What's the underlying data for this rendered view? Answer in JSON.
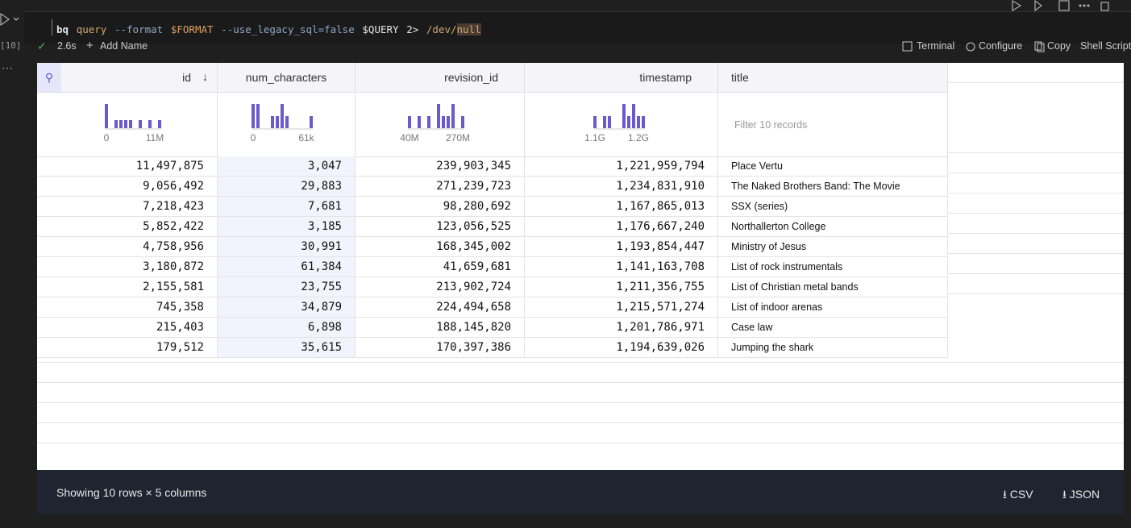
{
  "cell": {
    "exec_count": "[10]",
    "command": [
      "bq",
      "query",
      "--format",
      "$FORMAT",
      "--use_legacy_sql=false",
      "$QUERY",
      "2>",
      "/dev/",
      "null"
    ],
    "duration": "2.6s",
    "add_name": "Add Name"
  },
  "toolbar": [
    "Terminal",
    "Configure",
    "Copy",
    "Shell Script"
  ],
  "table": {
    "columns": [
      "id",
      "num_characters",
      "revision_id",
      "timestamp",
      "title"
    ],
    "histograms": [
      {
        "labels": [
          "0",
          "11M"
        ],
        "counts": [
          3,
          0,
          1,
          1,
          1,
          1,
          0,
          1,
          0,
          1,
          0,
          1
        ]
      },
      {
        "labels": [
          "0",
          "61k"
        ],
        "counts": [
          2,
          2,
          0,
          0,
          1,
          1,
          2,
          1,
          0,
          0,
          0,
          0,
          1
        ]
      },
      {
        "labels": [
          "40M",
          "270M"
        ],
        "counts": [
          1,
          0,
          1,
          0,
          1,
          0,
          2,
          1,
          1,
          2,
          0,
          1
        ]
      },
      {
        "labels": [
          "1.1G",
          "1.2G"
        ],
        "counts": [
          1,
          0,
          1,
          1,
          0,
          0,
          2,
          1,
          2,
          1,
          1
        ]
      }
    ],
    "filter_placeholder": "Filter 10 records",
    "rows": [
      [
        "11,497,875",
        "3,047",
        "239,903,345",
        "1,221,959,794",
        "Place Vertu"
      ],
      [
        "9,056,492",
        "29,883",
        "271,239,723",
        "1,234,831,910",
        "The Naked Brothers Band: The Movie"
      ],
      [
        "7,218,423",
        "7,681",
        "98,280,692",
        "1,167,865,013",
        "SSX (series)"
      ],
      [
        "5,852,422",
        "3,185",
        "123,056,525",
        "1,176,667,240",
        "Northallerton College"
      ],
      [
        "4,758,956",
        "30,991",
        "168,345,002",
        "1,193,854,447",
        "Ministry of Jesus"
      ],
      [
        "3,180,872",
        "61,384",
        "41,659,681",
        "1,141,163,708",
        "List of rock instrumentals"
      ],
      [
        "2,155,581",
        "23,755",
        "213,902,724",
        "1,211,356,755",
        "List of Christian metal bands"
      ],
      [
        "745,358",
        "34,879",
        "224,494,658",
        "1,215,571,274",
        "List of indoor arenas"
      ],
      [
        "215,403",
        "6,898",
        "188,145,820",
        "1,201,786,971",
        "Case law"
      ],
      [
        "179,512",
        "35,615",
        "170,397,386",
        "1,194,639,026",
        "Jumping the shark"
      ]
    ]
  },
  "footer": {
    "summary": "Showing 10 rows × 5 columns",
    "downloads": [
      "CSV",
      "JSON"
    ]
  }
}
